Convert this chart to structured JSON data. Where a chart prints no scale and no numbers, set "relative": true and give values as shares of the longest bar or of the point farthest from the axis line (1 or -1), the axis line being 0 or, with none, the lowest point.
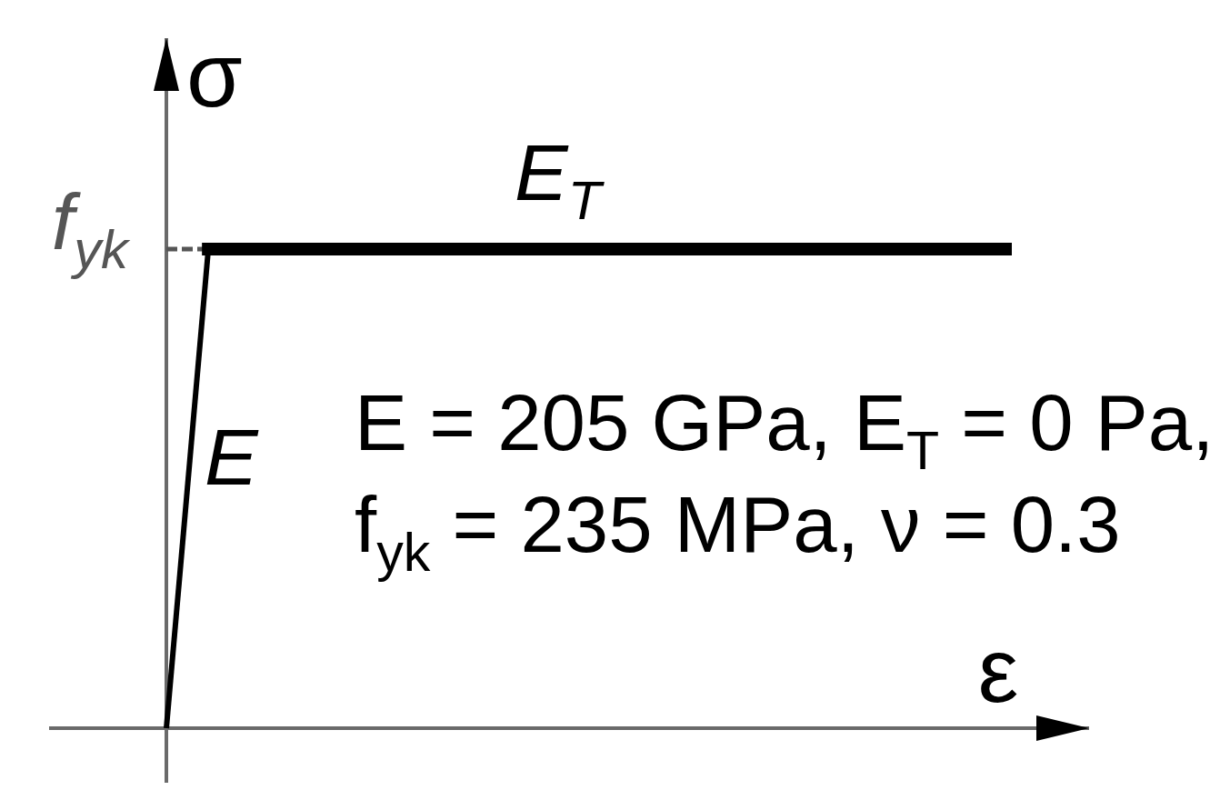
{
  "chart_data": {
    "type": "line",
    "relative": true,
    "xlabel": "ε",
    "ylabel": "σ",
    "categories": [
      null,
      null,
      null,
      null,
      null,
      null,
      null,
      null,
      null,
      null,
      null,
      null,
      null,
      null,
      null,
      null,
      null,
      null,
      null,
      null,
      null
    ],
    "series": [
      {
        "name": "f$_{yk}$",
        "color": "#555555",
        "line_style": "dashed",
        "values": [
          1,
          1,
          null,
          null,
          null,
          null,
          null,
          null,
          null,
          null,
          null,
          null,
          null,
          null,
          null,
          null,
          null,
          null,
          null,
          null,
          null
        ]
      },
      {
        "name": "E",
        "color": "#000000",
        "values": [
          0,
          1,
          null,
          null,
          null,
          null,
          null,
          null,
          null,
          null,
          null,
          null,
          null,
          null,
          null,
          null,
          null,
          null,
          null,
          null,
          null
        ]
      },
      {
        "name": "E$_{T}$",
        "color": "#000000",
        "values": [
          null,
          1,
          1,
          1,
          1,
          1,
          1,
          1,
          1,
          1,
          1,
          1,
          1,
          1,
          1,
          1,
          1,
          1,
          1,
          1,
          1
        ]
      }
    ],
    "annotations": [
      "E = 205 GPa, E$_{T}$ = 0 Pa,",
      "f$_{yk}$ = 235 MPa, ν = 0.3"
    ]
  }
}
